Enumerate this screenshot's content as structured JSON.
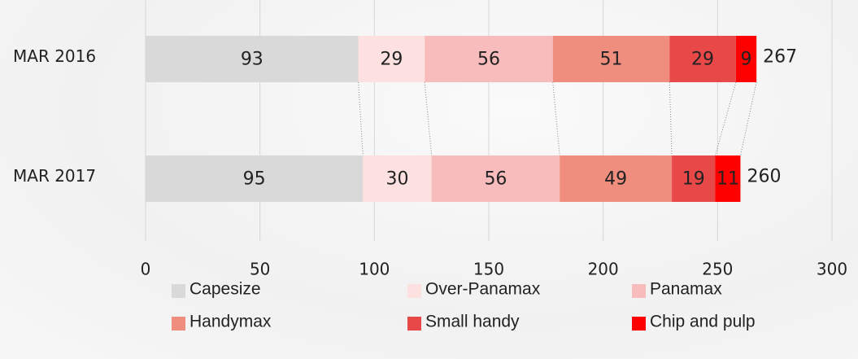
{
  "chart_data": {
    "type": "stacked-bar-horizontal",
    "categories": [
      "MAR 2016",
      "MAR 2017"
    ],
    "series": [
      {
        "name": "Capesize",
        "color": "#d9d9d9",
        "values": [
          93,
          95
        ]
      },
      {
        "name": "Over-Panamax",
        "color": "#fde0e0",
        "values": [
          29,
          30
        ]
      },
      {
        "name": "Panamax",
        "color": "#f9bcbc",
        "values": [
          56,
          56
        ]
      },
      {
        "name": "Handymax",
        "color": "#ef8e7e",
        "values": [
          51,
          49
        ]
      },
      {
        "name": "Small handy",
        "color": "#e84848",
        "values": [
          29,
          19
        ]
      },
      {
        "name": "Chip and pulp",
        "color": "#ff0000",
        "values": [
          9,
          11
        ]
      }
    ],
    "totals": [
      267,
      260
    ],
    "xlim": [
      0,
      300
    ],
    "xticks": [
      0,
      50,
      100,
      150,
      200,
      250,
      300
    ],
    "grid": true
  }
}
